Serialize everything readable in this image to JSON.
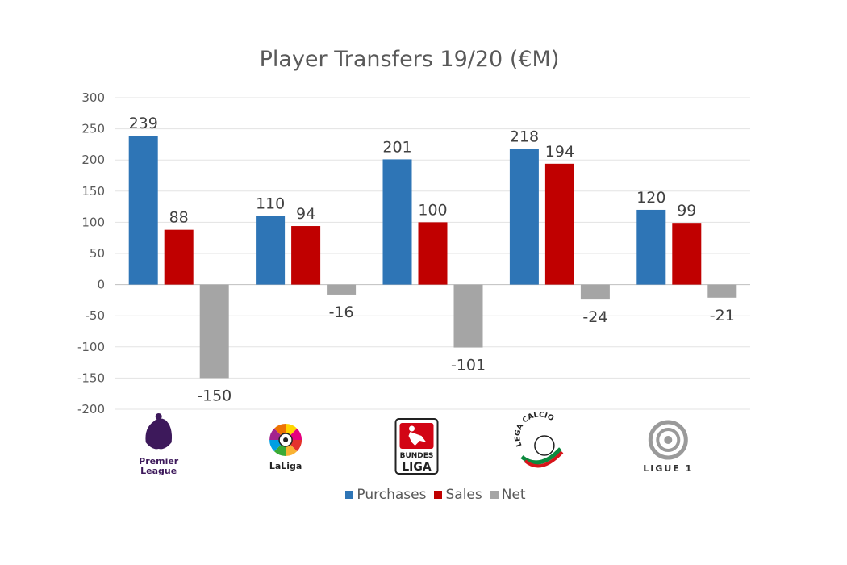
{
  "chart_data": {
    "type": "bar",
    "title": "Player Transfers 19/20 (€M)",
    "categories": [
      "Premier League",
      "LaLiga",
      "Bundesliga",
      "Lega Calcio",
      "Ligue 1"
    ],
    "series": [
      {
        "name": "Purchases",
        "color": "#2E75B6",
        "values": [
          239,
          110,
          201,
          218,
          120
        ]
      },
      {
        "name": "Sales",
        "color": "#C00000",
        "values": [
          88,
          94,
          100,
          194,
          99
        ]
      },
      {
        "name": "Net",
        "color": "#A5A5A5",
        "values": [
          -150,
          -16,
          -101,
          -24,
          -21
        ]
      }
    ],
    "ylim": [
      -200,
      300
    ],
    "yticks": [
      300,
      250,
      200,
      150,
      100,
      50,
      0,
      -50,
      -100,
      -150,
      -200
    ],
    "grid": true,
    "legend": "bottom",
    "xlabel": "",
    "ylabel": ""
  },
  "logos": [
    {
      "icon": "premier-league-logo",
      "lines": [
        "Premier",
        "League"
      ]
    },
    {
      "icon": "laliga-logo",
      "lines": [
        "LaLiga"
      ]
    },
    {
      "icon": "bundesliga-logo",
      "lines": [
        "BUNDES",
        "LIGA"
      ]
    },
    {
      "icon": "lega-calcio-logo",
      "lines": [
        "LEGA CALCIO"
      ]
    },
    {
      "icon": "ligue-1-logo",
      "lines": [
        "LIGUE 1"
      ]
    }
  ]
}
